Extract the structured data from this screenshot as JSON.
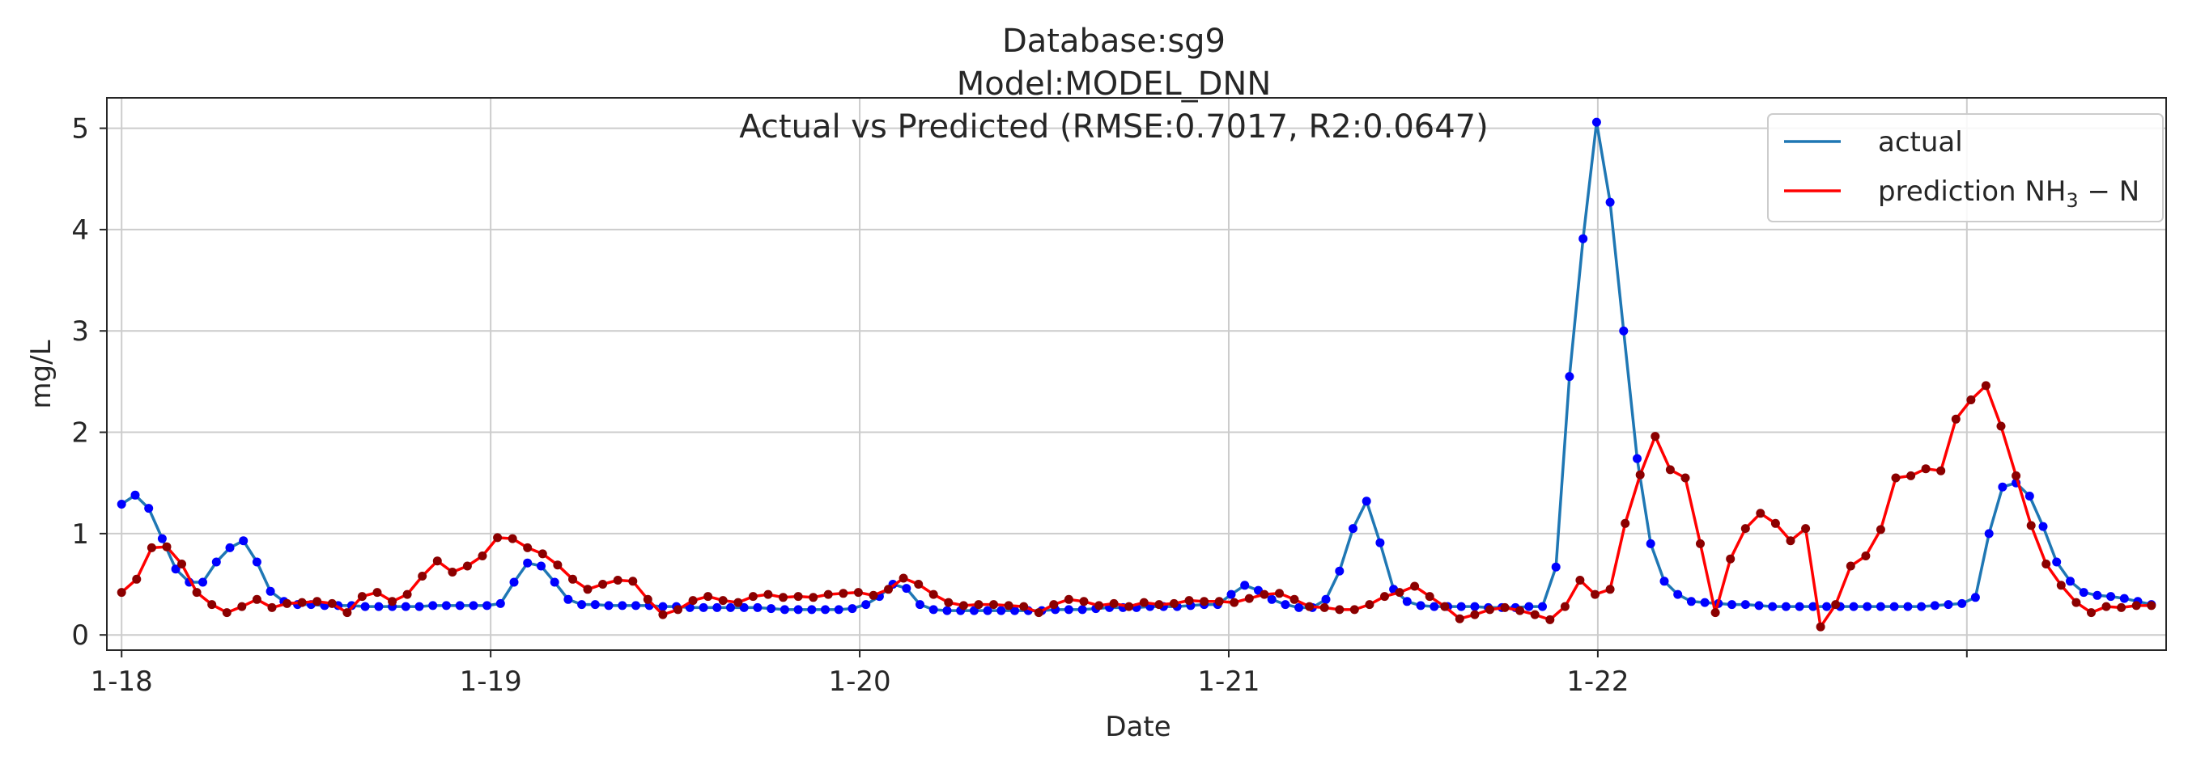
{
  "chart_data": {
    "type": "line",
    "title_lines": [
      "Database:sg9",
      "Model:MODEL_DNN",
      "Actual vs Predicted (RMSE:0.7017, R2:0.0647)"
    ],
    "xlabel": "Date",
    "ylabel": "mg/L",
    "ylim": [
      -0.15,
      5.3
    ],
    "xlim": [
      -0.04,
      5.54
    ],
    "x_unit": "days from 1-18",
    "x_ticks": [
      {
        "x": 0,
        "label": "1-18"
      },
      {
        "x": 1,
        "label": "1-19"
      },
      {
        "x": 2,
        "label": "1-20"
      },
      {
        "x": 3,
        "label": "1-21"
      },
      {
        "x": 4,
        "label": "1-22"
      },
      {
        "x": 5,
        "label": ""
      }
    ],
    "y_ticks": [
      0,
      1,
      2,
      3,
      4,
      5
    ],
    "grid": true,
    "legend_position": "top-right",
    "series": [
      {
        "name": "actual",
        "color": "#1f77b4",
        "marker_color": "#0000ff",
        "values": [
          1.29,
          1.38,
          1.25,
          0.95,
          0.65,
          0.52,
          0.52,
          0.72,
          0.86,
          0.93,
          0.72,
          0.43,
          0.33,
          0.3,
          0.3,
          0.29,
          0.29,
          0.29,
          0.28,
          0.28,
          0.28,
          0.28,
          0.28,
          0.29,
          0.29,
          0.29,
          0.29,
          0.29,
          0.31,
          0.52,
          0.71,
          0.68,
          0.52,
          0.35,
          0.3,
          0.3,
          0.29,
          0.29,
          0.29,
          0.29,
          0.28,
          0.28,
          0.27,
          0.27,
          0.27,
          0.27,
          0.27,
          0.27,
          0.26,
          0.25,
          0.25,
          0.25,
          0.25,
          0.25,
          0.26,
          0.3,
          0.38,
          0.5,
          0.46,
          0.3,
          0.25,
          0.24,
          0.24,
          0.24,
          0.24,
          0.24,
          0.24,
          0.24,
          0.24,
          0.25,
          0.25,
          0.25,
          0.26,
          0.27,
          0.27,
          0.27,
          0.28,
          0.28,
          0.28,
          0.29,
          0.3,
          0.3,
          0.4,
          0.49,
          0.44,
          0.35,
          0.3,
          0.27,
          0.27,
          0.35,
          0.63,
          1.05,
          1.32,
          0.91,
          0.45,
          0.33,
          0.29,
          0.28,
          0.28,
          0.28,
          0.28,
          0.27,
          0.27,
          0.27,
          0.28,
          0.28,
          0.67,
          2.55,
          3.91,
          5.06,
          4.27,
          3.0,
          1.74,
          0.9,
          0.53,
          0.4,
          0.33,
          0.32,
          0.31,
          0.3,
          0.3,
          0.29,
          0.28,
          0.28,
          0.28,
          0.28,
          0.28,
          0.28,
          0.28,
          0.28,
          0.28,
          0.28,
          0.28,
          0.28,
          0.29,
          0.3,
          0.31,
          0.37,
          1.0,
          1.46,
          1.5,
          1.37,
          1.07,
          0.72,
          0.53,
          0.42,
          0.39,
          0.38,
          0.36,
          0.33,
          0.3
        ]
      },
      {
        "name": "prediction NH3-N",
        "color": "#ff0000",
        "marker_color": "#8b0000",
        "values": [
          0.42,
          0.55,
          0.86,
          0.87,
          0.7,
          0.42,
          0.3,
          0.22,
          0.28,
          0.35,
          0.27,
          0.31,
          0.32,
          0.33,
          0.31,
          0.22,
          0.38,
          0.42,
          0.33,
          0.4,
          0.58,
          0.73,
          0.62,
          0.68,
          0.78,
          0.96,
          0.95,
          0.86,
          0.8,
          0.69,
          0.55,
          0.45,
          0.5,
          0.54,
          0.53,
          0.35,
          0.2,
          0.25,
          0.34,
          0.38,
          0.34,
          0.32,
          0.38,
          0.4,
          0.37,
          0.38,
          0.37,
          0.4,
          0.41,
          0.42,
          0.39,
          0.45,
          0.56,
          0.5,
          0.4,
          0.32,
          0.29,
          0.3,
          0.3,
          0.29,
          0.28,
          0.22,
          0.3,
          0.35,
          0.33,
          0.29,
          0.31,
          0.28,
          0.32,
          0.3,
          0.31,
          0.34,
          0.33,
          0.33,
          0.32,
          0.36,
          0.4,
          0.41,
          0.35,
          0.28,
          0.27,
          0.25,
          0.25,
          0.3,
          0.38,
          0.42,
          0.48,
          0.38,
          0.28,
          0.16,
          0.2,
          0.25,
          0.27,
          0.24,
          0.2,
          0.15,
          0.28,
          0.54,
          0.4,
          0.45,
          1.1,
          1.58,
          1.96,
          1.63,
          1.55,
          0.9,
          0.22,
          0.75,
          1.05,
          1.2,
          1.1,
          0.93,
          1.05,
          0.08,
          0.3,
          0.68,
          0.78,
          1.04,
          1.55,
          1.57,
          1.64,
          1.62,
          2.13,
          2.32,
          2.46,
          2.06,
          1.57,
          1.08,
          0.7,
          0.49,
          0.32,
          0.22,
          0.28,
          0.27,
          0.29,
          0.29
        ]
      }
    ]
  }
}
